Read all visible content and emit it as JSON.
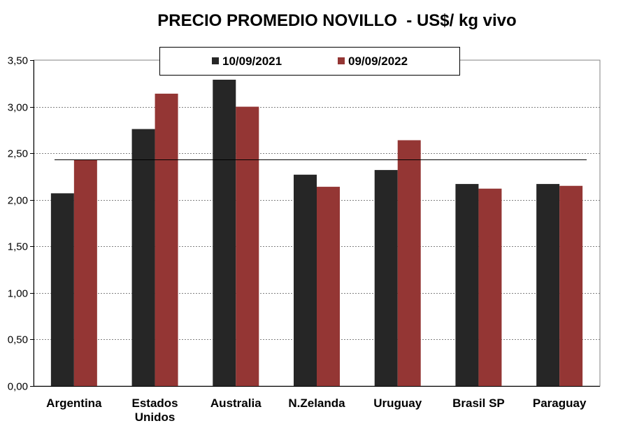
{
  "chart_data": {
    "type": "bar",
    "title": "PRECIO PROMEDIO NOVILLO  - US$/ kg vivo",
    "categories": [
      "Argentina",
      "Estados Unidos",
      "Australia",
      "N.Zelanda",
      "Uruguay",
      "Brasil SP",
      "Paraguay"
    ],
    "category_lines": [
      [
        "Argentina"
      ],
      [
        "Estados",
        "Unidos"
      ],
      [
        "Australia"
      ],
      [
        "N.Zelanda"
      ],
      [
        "Uruguay"
      ],
      [
        "Brasil SP"
      ],
      [
        "Paraguay"
      ]
    ],
    "series": [
      {
        "name": "10/09/2021",
        "color": "#262626",
        "values": [
          2.07,
          2.76,
          3.29,
          2.27,
          2.32,
          2.17,
          2.17
        ]
      },
      {
        "name": "09/09/2022",
        "color": "#943634",
        "values": [
          2.43,
          3.14,
          3.0,
          2.14,
          2.64,
          2.12,
          2.15
        ]
      }
    ],
    "reference_line": 2.43,
    "ylim": [
      0,
      3.5
    ],
    "yticks": [
      "0,00",
      "0,50",
      "1,00",
      "1,50",
      "2,00",
      "2,50",
      "3,00",
      "3,50"
    ],
    "grid": true,
    "legend": "top-center"
  }
}
